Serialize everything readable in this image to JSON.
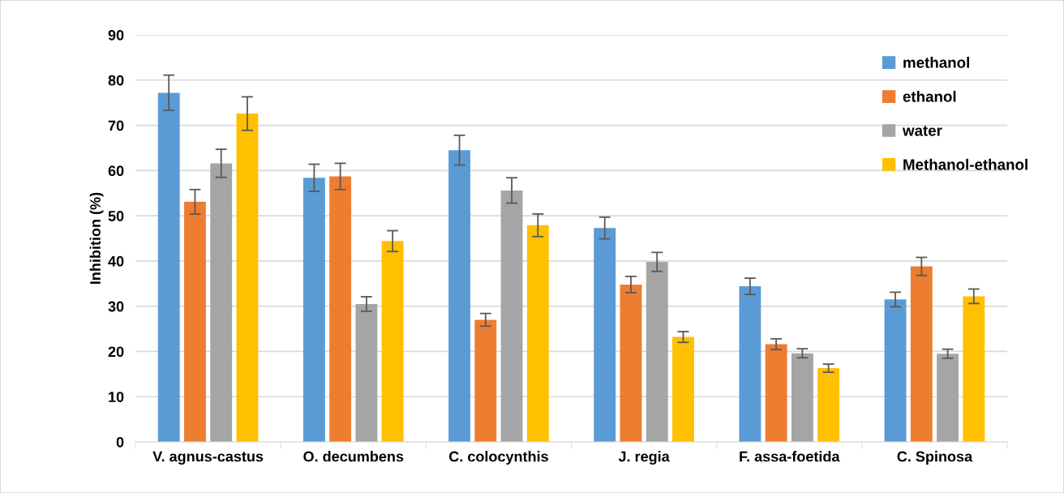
{
  "chart_data": {
    "type": "bar",
    "ylabel": "Inhibition (%)",
    "categories": [
      "V. agnus-castus",
      "O. decumbens",
      "C. colocynthis",
      "J. regia",
      "F. assa-foetida",
      "C. Spinosa"
    ],
    "series": [
      {
        "name": "methanol",
        "color": "#5b9bd5",
        "values": [
          77.2,
          58.4,
          64.5,
          47.3,
          34.4,
          31.5
        ],
        "errors": [
          3.9,
          3.0,
          3.3,
          2.4,
          1.8,
          1.6
        ]
      },
      {
        "name": "ethanol",
        "color": "#ed7d31",
        "values": [
          53.1,
          58.7,
          27.0,
          34.8,
          21.6,
          38.8
        ],
        "errors": [
          2.7,
          2.9,
          1.4,
          1.8,
          1.2,
          2.0
        ]
      },
      {
        "name": "water",
        "color": "#a5a5a5",
        "values": [
          61.6,
          30.5,
          55.6,
          39.8,
          19.6,
          19.5
        ],
        "errors": [
          3.1,
          1.6,
          2.8,
          2.1,
          1.0,
          1.0
        ]
      },
      {
        "name": "Methanol-ethanol",
        "color": "#ffc000",
        "values": [
          72.6,
          44.4,
          47.9,
          23.2,
          16.3,
          32.2
        ],
        "errors": [
          3.7,
          2.3,
          2.5,
          1.2,
          0.9,
          1.6
        ]
      }
    ],
    "ylim": [
      0,
      90
    ],
    "yticks": [
      0,
      10,
      20,
      30,
      40,
      50,
      60,
      70,
      80,
      90
    ],
    "grid": "y",
    "legend": "top right"
  }
}
